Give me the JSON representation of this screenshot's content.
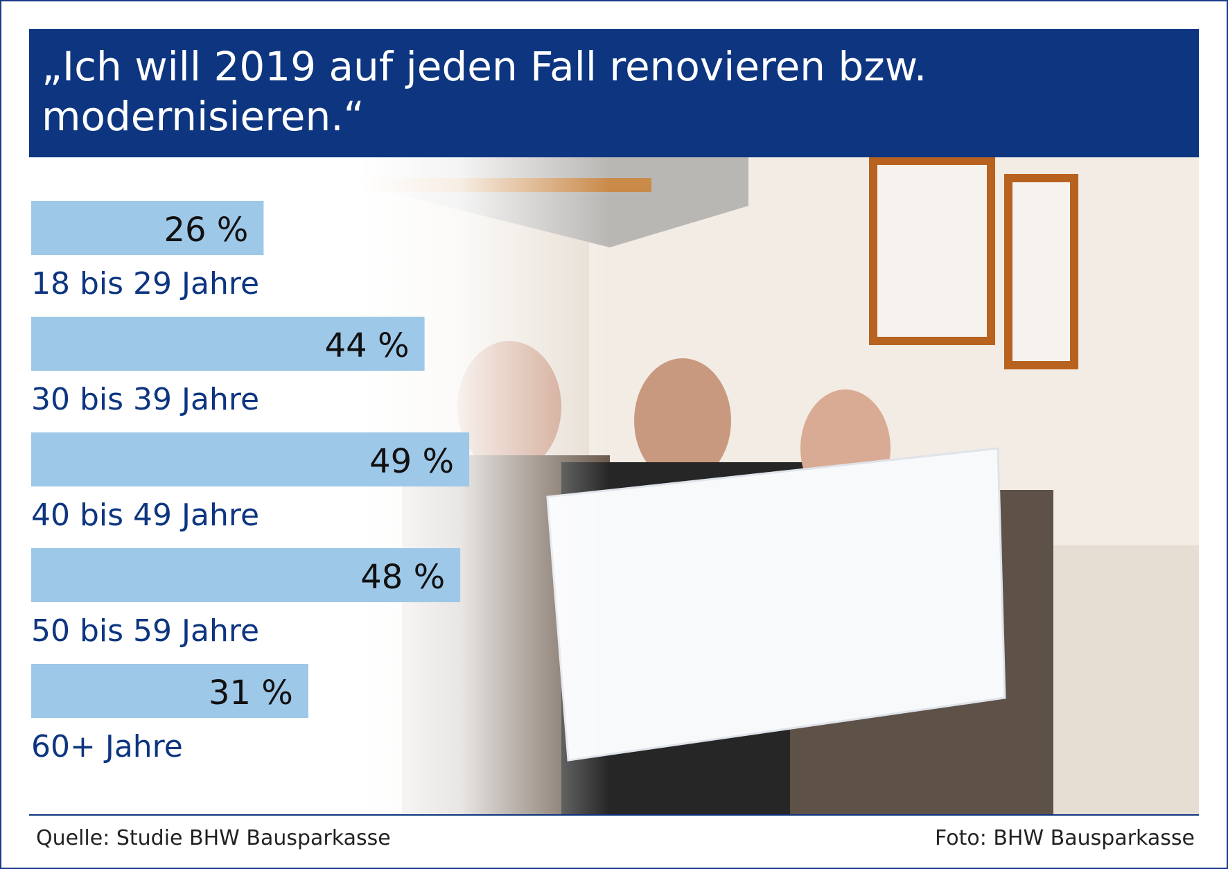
{
  "title": "„Ich will 2019 auf jeden Fall renovieren bzw. modernisieren.“",
  "source": "Quelle: Studie BHW Bausparkasse",
  "photo_credit": "Foto: BHW Bausparkasse",
  "colors": {
    "header_bg": "#0d3580",
    "bar": "#9ec8e8",
    "label_text": "#0d3580"
  },
  "chart_data": {
    "type": "bar",
    "orientation": "horizontal",
    "categories": [
      "18 bis 29 Jahre",
      "30 bis 39 Jahre",
      "40 bis 49 Jahre",
      "50 bis 59 Jahre",
      "60+ Jahre"
    ],
    "values": [
      26,
      44,
      49,
      48,
      31
    ],
    "value_labels": [
      "26 %",
      "44 %",
      "49 %",
      "48 %",
      "31 %"
    ],
    "unit": "%",
    "xlim": [
      0,
      100
    ],
    "grid": false,
    "legend": "none"
  }
}
